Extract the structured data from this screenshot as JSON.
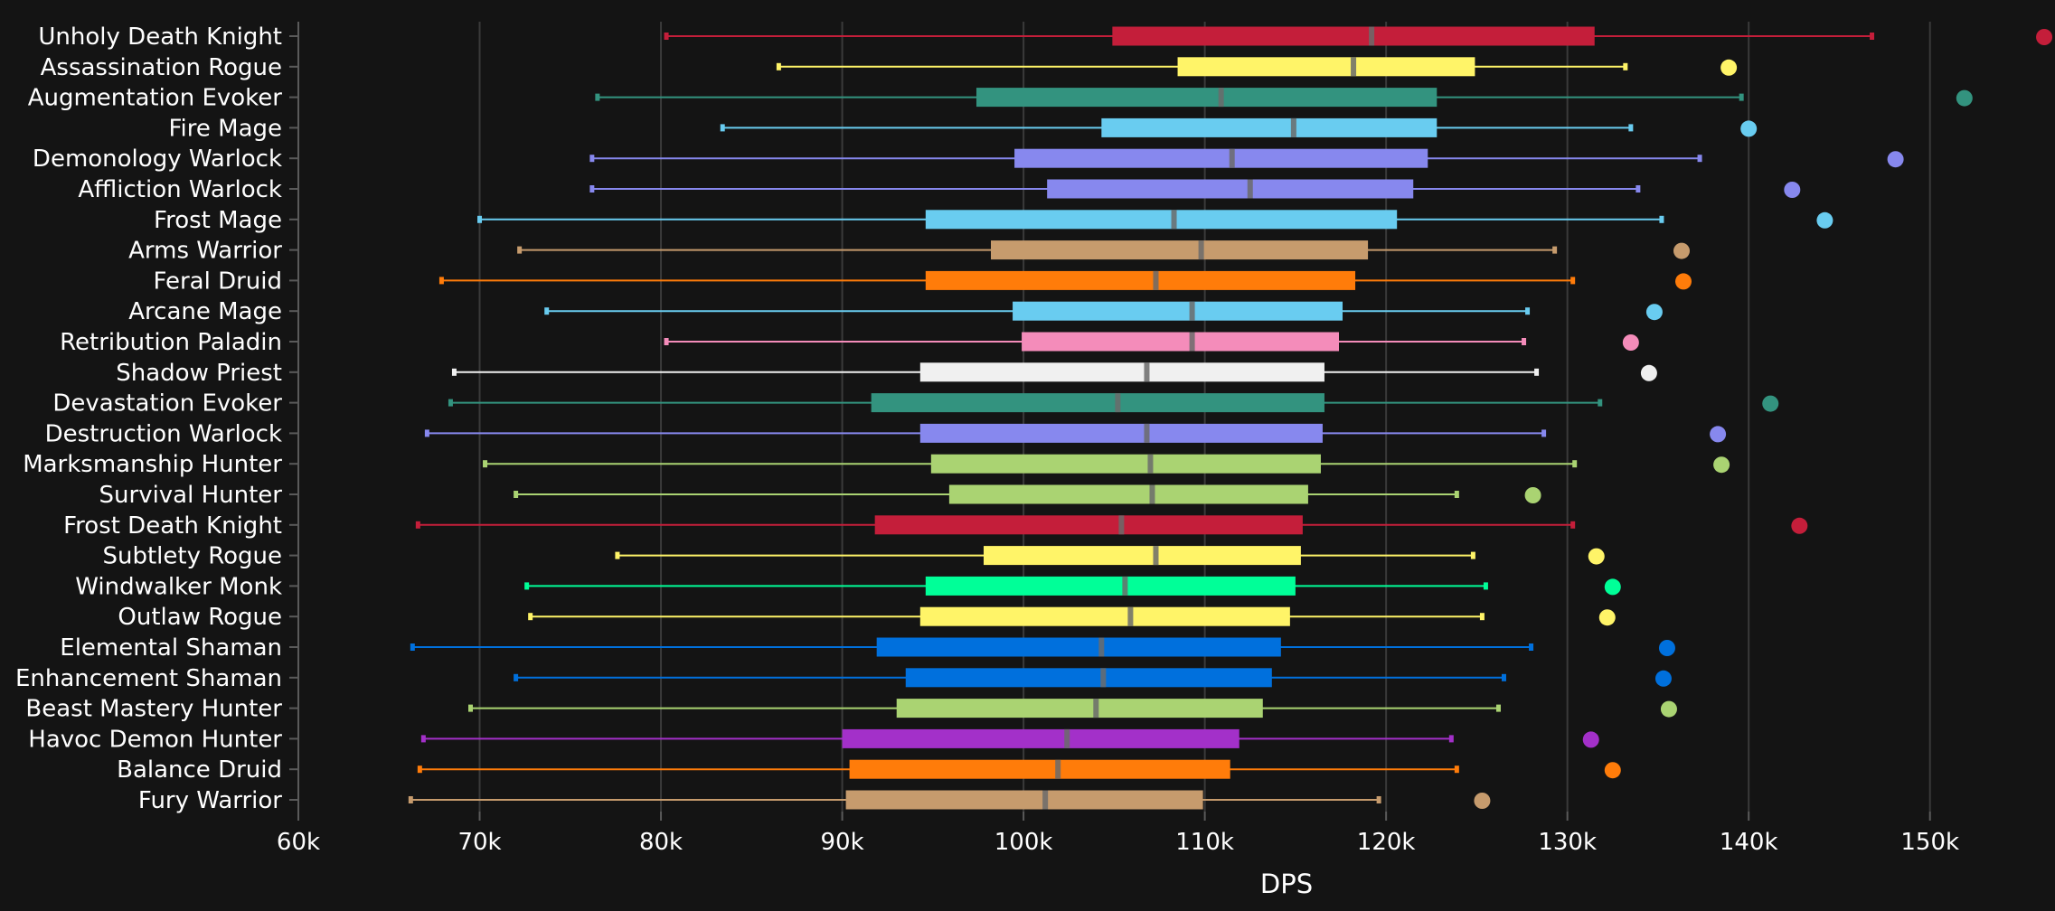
{
  "chart_data": {
    "type": "boxplot",
    "title": "",
    "xlabel": "DPS",
    "ylabel": "",
    "xlim": [
      60000,
      155500
    ],
    "x_ticks": [
      {
        "value": 60000,
        "label": "60k"
      },
      {
        "value": 70000,
        "label": "70k"
      },
      {
        "value": 80000,
        "label": "80k"
      },
      {
        "value": 90000,
        "label": "90k"
      },
      {
        "value": 100000,
        "label": "100k"
      },
      {
        "value": 110000,
        "label": "110k"
      },
      {
        "value": 120000,
        "label": "120k"
      },
      {
        "value": 130000,
        "label": "130k"
      },
      {
        "value": 140000,
        "label": "140k"
      },
      {
        "value": 150000,
        "label": "150k"
      }
    ],
    "grid": true,
    "legend": "none",
    "series": [
      {
        "name": "Unholy Death Knight",
        "color": "#C41E3A",
        "min": 80300,
        "q1": 104900,
        "median": 119200,
        "q3": 131500,
        "max": 146800,
        "outlier": 156300
      },
      {
        "name": "Assassination Rogue",
        "color": "#FFF468",
        "min": 86500,
        "q1": 108500,
        "median": 118200,
        "q3": 124900,
        "max": 133200,
        "outlier": 138900
      },
      {
        "name": "Augmentation Evoker",
        "color": "#33937F",
        "min": 76500,
        "q1": 97400,
        "median": 110900,
        "q3": 122800,
        "max": 139600,
        "outlier": 151900
      },
      {
        "name": "Fire Mage",
        "color": "#69CCF0",
        "min": 83400,
        "q1": 104300,
        "median": 114900,
        "q3": 122800,
        "max": 133500,
        "outlier": 140000
      },
      {
        "name": "Demonology Warlock",
        "color": "#8788EE",
        "min": 76200,
        "q1": 99500,
        "median": 111500,
        "q3": 122300,
        "max": 137300,
        "outlier": 148100
      },
      {
        "name": "Affliction Warlock",
        "color": "#8788EE",
        "min": 76200,
        "q1": 101300,
        "median": 112500,
        "q3": 121500,
        "max": 133900,
        "outlier": 142400
      },
      {
        "name": "Frost Mage",
        "color": "#69CCF0",
        "min": 70000,
        "q1": 94600,
        "median": 108300,
        "q3": 120600,
        "max": 135200,
        "outlier": 144200
      },
      {
        "name": "Arms Warrior",
        "color": "#C69B6D",
        "min": 72200,
        "q1": 98200,
        "median": 109800,
        "q3": 119000,
        "max": 129300,
        "outlier": 136300
      },
      {
        "name": "Feral Druid",
        "color": "#FF7C0A",
        "min": 67900,
        "q1": 94600,
        "median": 107300,
        "q3": 118300,
        "max": 130300,
        "outlier": 136400
      },
      {
        "name": "Arcane Mage",
        "color": "#69CCF0",
        "min": 73700,
        "q1": 99400,
        "median": 109300,
        "q3": 117600,
        "max": 127800,
        "outlier": 134800
      },
      {
        "name": "Retribution Paladin",
        "color": "#F48CBA",
        "min": 80300,
        "q1": 99900,
        "median": 109300,
        "q3": 117400,
        "max": 127600,
        "outlier": 133500
      },
      {
        "name": "Shadow Priest",
        "color": "#F0F0F0",
        "min": 68600,
        "q1": 94300,
        "median": 106800,
        "q3": 116600,
        "max": 128300,
        "outlier": 134500
      },
      {
        "name": "Devastation Evoker",
        "color": "#33937F",
        "min": 68400,
        "q1": 91600,
        "median": 105200,
        "q3": 116600,
        "max": 131800,
        "outlier": 141200
      },
      {
        "name": "Destruction Warlock",
        "color": "#8788EE",
        "min": 67100,
        "q1": 94300,
        "median": 106800,
        "q3": 116500,
        "max": 128700,
        "outlier": 138300
      },
      {
        "name": "Marksmanship Hunter",
        "color": "#AAD372",
        "min": 70300,
        "q1": 94900,
        "median": 107000,
        "q3": 116400,
        "max": 130400,
        "outlier": 138500
      },
      {
        "name": "Survival Hunter",
        "color": "#AAD372",
        "min": 72000,
        "q1": 95900,
        "median": 107100,
        "q3": 115700,
        "max": 123900,
        "outlier": 128100
      },
      {
        "name": "Frost Death Knight",
        "color": "#C41E3A",
        "min": 66600,
        "q1": 91800,
        "median": 105400,
        "q3": 115400,
        "max": 130300,
        "outlier": 142800
      },
      {
        "name": "Subtlety Rogue",
        "color": "#FFF468",
        "min": 77600,
        "q1": 97800,
        "median": 107300,
        "q3": 115300,
        "max": 124800,
        "outlier": 131600
      },
      {
        "name": "Windwalker Monk",
        "color": "#00FF98",
        "min": 72600,
        "q1": 94600,
        "median": 105600,
        "q3": 115000,
        "max": 125500,
        "outlier": 132500
      },
      {
        "name": "Outlaw Rogue",
        "color": "#FFF468",
        "min": 72800,
        "q1": 94300,
        "median": 105900,
        "q3": 114700,
        "max": 125300,
        "outlier": 132200
      },
      {
        "name": "Elemental Shaman",
        "color": "#0070DD",
        "min": 66300,
        "q1": 91900,
        "median": 104300,
        "q3": 114200,
        "max": 128000,
        "outlier": 135500
      },
      {
        "name": "Enhancement Shaman",
        "color": "#0070DD",
        "min": 72000,
        "q1": 93500,
        "median": 104400,
        "q3": 113700,
        "max": 126500,
        "outlier": 135300
      },
      {
        "name": "Beast Mastery Hunter",
        "color": "#AAD372",
        "min": 69500,
        "q1": 93000,
        "median": 104000,
        "q3": 113200,
        "max": 126200,
        "outlier": 135600
      },
      {
        "name": "Havoc Demon Hunter",
        "color": "#A330C9",
        "min": 66900,
        "q1": 90000,
        "median": 102400,
        "q3": 111900,
        "max": 123600,
        "outlier": 131300
      },
      {
        "name": "Balance Druid",
        "color": "#FF7C0A",
        "min": 66700,
        "q1": 90400,
        "median": 101900,
        "q3": 111400,
        "max": 123900,
        "outlier": 132500
      },
      {
        "name": "Fury Warrior",
        "color": "#C69B6D",
        "min": 66200,
        "q1": 90200,
        "median": 101200,
        "q3": 109900,
        "max": 119600,
        "outlier": 125300
      }
    ]
  },
  "style": {
    "background": "#141414",
    "gridline_color": "#3a3a3a",
    "axis_color": "#5a5a5a",
    "text_color": "#ffffff",
    "median_color": "#6b6b6b"
  }
}
